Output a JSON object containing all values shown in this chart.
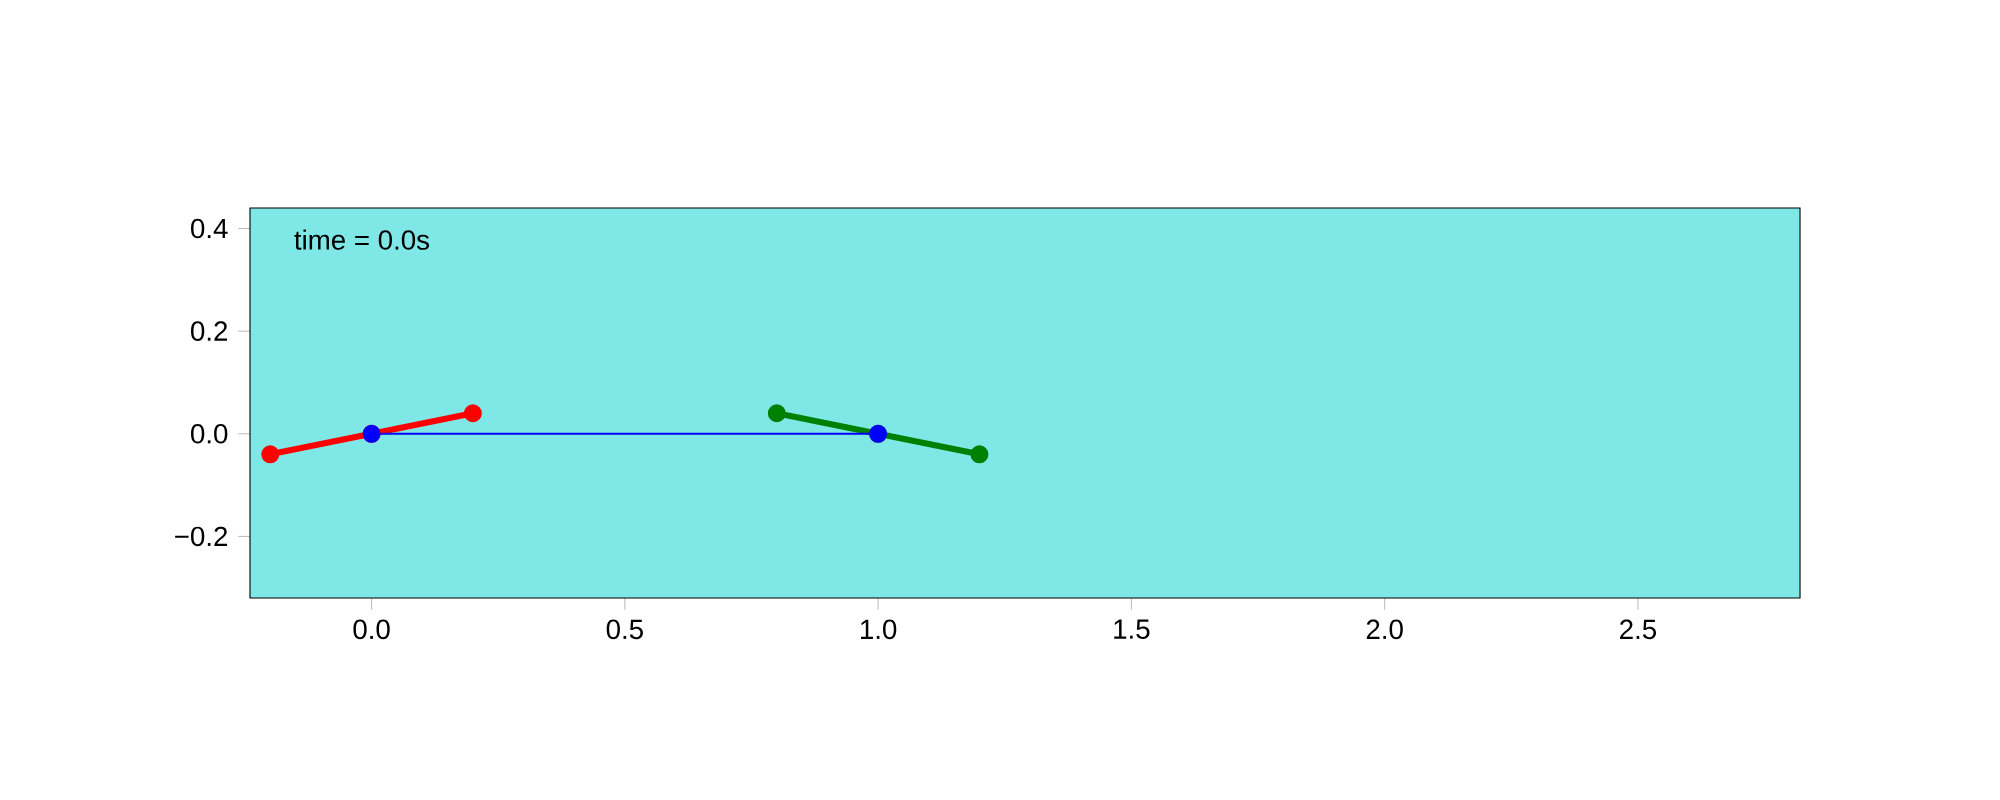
{
  "chart_data": {
    "type": "line",
    "marker": "circle",
    "grid": false,
    "xlim": [
      -0.24,
      2.82
    ],
    "ylim": [
      -0.32,
      0.44
    ],
    "xticks": [
      {
        "value": 0,
        "label": "0.0"
      },
      {
        "value": 0.5,
        "label": "0.5"
      },
      {
        "value": 1,
        "label": "1.0"
      },
      {
        "value": 1.5,
        "label": "1.5"
      },
      {
        "value": 2,
        "label": "2.0"
      },
      {
        "value": 2.5,
        "label": "2.5"
      }
    ],
    "yticks": [
      {
        "value": -0.2,
        "label": "−0.2"
      },
      {
        "value": 0,
        "label": "0.0"
      },
      {
        "value": 0.2,
        "label": "0.2"
      },
      {
        "value": 0.4,
        "label": "0.4"
      }
    ],
    "annotations": [
      "time = 0.0s"
    ],
    "series": [
      {
        "color": "#ff0000",
        "x": [
          -0.2,
          0,
          0.2
        ],
        "values": [
          -0.04,
          0,
          0.04
        ]
      },
      {
        "color": "#008000",
        "x": [
          0.8,
          1,
          1.2
        ],
        "values": [
          0.04,
          0,
          -0.04
        ]
      },
      {
        "color": "#0000ff",
        "x": [
          0,
          1
        ],
        "values": [
          0,
          0
        ]
      }
    ]
  }
}
